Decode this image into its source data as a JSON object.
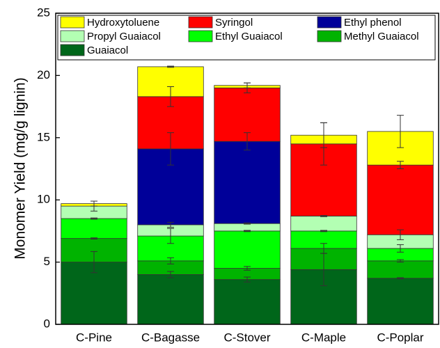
{
  "chart_data": {
    "type": "stacked_bar",
    "ylabel": "Monomer Yield (mg/g lignin)",
    "categories": [
      "C-Pine",
      "C-Bagasse",
      "C-Stover",
      "C-Maple",
      "C-Poplar"
    ],
    "ylim": [
      0,
      25
    ],
    "yticks": [
      0,
      5,
      10,
      15,
      20,
      25
    ],
    "series": [
      {
        "name": "Hydroxytoluene",
        "color": "#ffff00",
        "values": [
          0.2,
          2.4,
          0.2,
          0.7,
          2.7
        ],
        "errors": [
          0.2,
          0.05,
          0.2,
          1.0,
          1.3
        ]
      },
      {
        "name": "Syringol",
        "color": "#ff0000",
        "values": [
          0,
          4.2,
          4.3,
          5.8,
          5.6
        ],
        "errors": [
          0,
          0.8,
          0.4,
          1.7,
          0.3
        ]
      },
      {
        "name": "Ethyl phenol",
        "color": "#000099",
        "values": [
          0,
          6.1,
          6.6,
          0,
          0
        ],
        "errors": [
          0,
          1.3,
          0.7,
          0,
          0
        ]
      },
      {
        "name": "Propyl Guaiacol",
        "color": "#b3ffb3",
        "values": [
          1.0,
          0.9,
          0.6,
          1.2,
          1.1
        ],
        "errors": [
          0.4,
          0.2,
          0.05,
          0.05,
          0.4
        ]
      },
      {
        "name": "Ethyl Guaiacol",
        "color": "#00ff00",
        "values": [
          1.6,
          2.0,
          3.0,
          1.4,
          1.0
        ],
        "errors": [
          0.05,
          0.6,
          0.05,
          0.05,
          0.3
        ]
      },
      {
        "name": "Methyl Guaiacol",
        "color": "#00b300",
        "values": [
          1.9,
          1.1,
          0.9,
          1.7,
          1.4
        ],
        "errors": [
          0.05,
          0.25,
          0.15,
          0.4,
          0.1
        ]
      },
      {
        "name": "Guaiacol",
        "color": "#00661a",
        "values": [
          5.0,
          4.0,
          3.6,
          4.4,
          3.7
        ],
        "errors": [
          0.85,
          0.25,
          0.2,
          1.3,
          0.05
        ]
      }
    ]
  }
}
